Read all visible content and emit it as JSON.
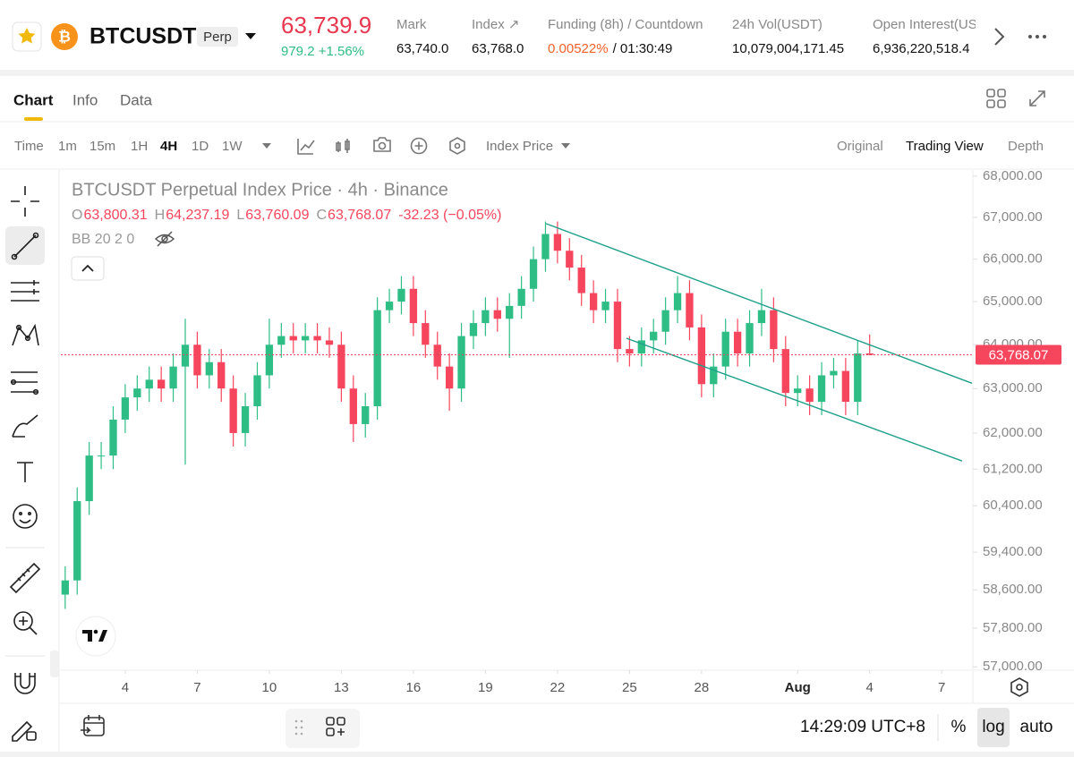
{
  "header": {
    "symbol": "BTCUSDT",
    "contract": "Perp",
    "last_price": "63,739.9",
    "change": "979.2 +1.56%",
    "stats": [
      {
        "label": "Mark",
        "value": "63,740.0"
      },
      {
        "label": "Index ↗",
        "value": "63,768.0"
      },
      {
        "label": "Funding (8h) / Countdown",
        "value": "0.00522%",
        "value2": "/ 01:30:49"
      },
      {
        "label": "24h Vol(USDT)",
        "value": "10,079,004,171.45"
      },
      {
        "label": "Open Interest(US",
        "value": "6,936,220,518.4"
      }
    ]
  },
  "tabs": [
    "Chart",
    "Info",
    "Data"
  ],
  "toolbar": {
    "intervals": [
      "Time",
      "1m",
      "15m",
      "1H",
      "4H",
      "1D",
      "1W"
    ],
    "active_interval": 4,
    "price_source": "Index Price",
    "views": [
      "Original",
      "Trading View",
      "Depth"
    ],
    "active_view": 1
  },
  "chart_data": {
    "type": "candlestick",
    "title": "BTCUSDT Perpetual Index Price · 4h · Binance",
    "ohlc_legend": [
      {
        "label": "O",
        "value": "63,800.31"
      },
      {
        "label": "H",
        "value": "64,237.19"
      },
      {
        "label": "L",
        "value": "63,760.09"
      },
      {
        "label": "C",
        "value": "63,768.07"
      }
    ],
    "change_label": "-32.23 (−0.05%)",
    "indicator": "BB 20 2 0",
    "up_color": "#2ebd85",
    "down_color": "#f6465d",
    "trend_color": "#1fa08a",
    "log_scale": true,
    "xlim": [
      1.32,
      39.26
    ],
    "xticks": [
      4,
      7,
      10,
      13,
      16,
      19,
      22,
      25,
      28,
      {
        "value": 32,
        "label": "Aug"
      },
      {
        "value": 35,
        "label": "4"
      },
      {
        "value": 38,
        "label": "7"
      }
    ],
    "ylim": [
      56950,
      68150
    ],
    "yticks": [
      {
        "value": 68000,
        "label": "68,000.00"
      },
      {
        "value": 67000,
        "label": "67,000.00"
      },
      {
        "value": 66000,
        "label": "66,000.00"
      },
      {
        "value": 65000,
        "label": "65,000.00"
      },
      {
        "value": 64000,
        "label": "64,000.00"
      },
      {
        "value": 63000,
        "label": "63,000.00"
      },
      {
        "value": 62000,
        "label": "62,000.00"
      },
      {
        "value": 61200,
        "label": "61,200.00"
      },
      {
        "value": 60400,
        "label": "60,400.00"
      },
      {
        "value": 59400,
        "label": "59,400.00"
      },
      {
        "value": 58600,
        "label": "58,600.00"
      },
      {
        "value": 57800,
        "label": "57,800.00"
      },
      {
        "value": 57000,
        "label": "57,000.00"
      }
    ],
    "candles": [
      {
        "x": 1.5,
        "open": 58500,
        "high": 59100,
        "low": 58200,
        "close": 58800
      },
      {
        "x": 2,
        "open": 58800,
        "high": 60800,
        "low": 58500,
        "close": 60500
      },
      {
        "x": 2.5,
        "open": 60500,
        "high": 61800,
        "low": 60200,
        "close": 61500
      },
      {
        "x": 3,
        "open": 61500,
        "high": 61800,
        "low": 61200,
        "close": 61500
      },
      {
        "x": 3.5,
        "open": 61500,
        "high": 62600,
        "low": 61200,
        "close": 62300
      },
      {
        "x": 4,
        "open": 62300,
        "high": 63100,
        "low": 62000,
        "close": 62800
      },
      {
        "x": 4.5,
        "open": 62800,
        "high": 63300,
        "low": 62500,
        "close": 63000
      },
      {
        "x": 5,
        "open": 63000,
        "high": 63500,
        "low": 62700,
        "close": 63200
      },
      {
        "x": 5.5,
        "open": 63200,
        "high": 63500,
        "low": 62700,
        "close": 63000
      },
      {
        "x": 6,
        "open": 63000,
        "high": 63800,
        "low": 62700,
        "close": 63500
      },
      {
        "x": 6.5,
        "open": 63500,
        "high": 64600,
        "low": 61300,
        "close": 64000
      },
      {
        "x": 7,
        "open": 64000,
        "high": 64300,
        "low": 63000,
        "close": 63300
      },
      {
        "x": 7.5,
        "open": 63300,
        "high": 63900,
        "low": 63000,
        "close": 63600
      },
      {
        "x": 8,
        "open": 63600,
        "high": 63900,
        "low": 62700,
        "close": 63000
      },
      {
        "x": 8.5,
        "open": 63000,
        "high": 63300,
        "low": 61700,
        "close": 62000
      },
      {
        "x": 9,
        "open": 62000,
        "high": 62900,
        "low": 61700,
        "close": 62600
      },
      {
        "x": 9.5,
        "open": 62600,
        "high": 63600,
        "low": 62300,
        "close": 63300
      },
      {
        "x": 10,
        "open": 63300,
        "high": 64600,
        "low": 63000,
        "close": 64000
      },
      {
        "x": 10.5,
        "open": 64000,
        "high": 64500,
        "low": 63700,
        "close": 64200
      },
      {
        "x": 11,
        "open": 64200,
        "high": 64500,
        "low": 63800,
        "close": 64100
      },
      {
        "x": 11.5,
        "open": 64100,
        "high": 64500,
        "low": 63800,
        "close": 64200
      },
      {
        "x": 12,
        "open": 64200,
        "high": 64500,
        "low": 63800,
        "close": 64100
      },
      {
        "x": 12.5,
        "open": 64100,
        "high": 64400,
        "low": 63700,
        "close": 64000
      },
      {
        "x": 13,
        "open": 64000,
        "high": 64300,
        "low": 62700,
        "close": 63000
      },
      {
        "x": 13.5,
        "open": 63000,
        "high": 63300,
        "low": 61800,
        "close": 62200
      },
      {
        "x": 14,
        "open": 62200,
        "high": 62900,
        "low": 61900,
        "close": 62600
      },
      {
        "x": 14.5,
        "open": 62600,
        "high": 65100,
        "low": 62300,
        "close": 64800
      },
      {
        "x": 15,
        "open": 64800,
        "high": 65300,
        "low": 64500,
        "close": 65000
      },
      {
        "x": 15.5,
        "open": 65000,
        "high": 65600,
        "low": 64700,
        "close": 65300
      },
      {
        "x": 16,
        "open": 65300,
        "high": 65600,
        "low": 64200,
        "close": 64500
      },
      {
        "x": 16.5,
        "open": 64500,
        "high": 64800,
        "low": 63700,
        "close": 64000
      },
      {
        "x": 17,
        "open": 64000,
        "high": 64300,
        "low": 63200,
        "close": 63500
      },
      {
        "x": 17.5,
        "open": 63500,
        "high": 63800,
        "low": 62500,
        "close": 63000
      },
      {
        "x": 18,
        "open": 63000,
        "high": 64500,
        "low": 62700,
        "close": 64200
      },
      {
        "x": 18.5,
        "open": 64200,
        "high": 64800,
        "low": 63900,
        "close": 64500
      },
      {
        "x": 19,
        "open": 64500,
        "high": 65100,
        "low": 64200,
        "close": 64800
      },
      {
        "x": 19.5,
        "open": 64800,
        "high": 65100,
        "low": 64300,
        "close": 64600
      },
      {
        "x": 20,
        "open": 64600,
        "high": 65200,
        "low": 63700,
        "close": 64900
      },
      {
        "x": 20.5,
        "open": 64900,
        "high": 65600,
        "low": 64600,
        "close": 65300
      },
      {
        "x": 21,
        "open": 65300,
        "high": 66300,
        "low": 65000,
        "close": 66000
      },
      {
        "x": 21.5,
        "open": 66000,
        "high": 66900,
        "low": 65700,
        "close": 66600
      },
      {
        "x": 22,
        "open": 66600,
        "high": 66900,
        "low": 65900,
        "close": 66200
      },
      {
        "x": 22.5,
        "open": 66200,
        "high": 66500,
        "low": 65500,
        "close": 65800
      },
      {
        "x": 23,
        "open": 65800,
        "high": 66100,
        "low": 64900,
        "close": 65200
      },
      {
        "x": 23.5,
        "open": 65200,
        "high": 65500,
        "low": 64500,
        "close": 64800
      },
      {
        "x": 24,
        "open": 64800,
        "high": 65300,
        "low": 64500,
        "close": 65000
      },
      {
        "x": 24.5,
        "open": 65000,
        "high": 65300,
        "low": 63600,
        "close": 63900
      },
      {
        "x": 25,
        "open": 63900,
        "high": 64200,
        "low": 63500,
        "close": 63800
      },
      {
        "x": 25.5,
        "open": 63800,
        "high": 64400,
        "low": 63500,
        "close": 64100
      },
      {
        "x": 26,
        "open": 64100,
        "high": 64600,
        "low": 63800,
        "close": 64300
      },
      {
        "x": 26.5,
        "open": 64300,
        "high": 65100,
        "low": 64000,
        "close": 64800
      },
      {
        "x": 27,
        "open": 64800,
        "high": 65600,
        "low": 64500,
        "close": 65200
      },
      {
        "x": 27.5,
        "open": 65200,
        "high": 65500,
        "low": 64100,
        "close": 64400
      },
      {
        "x": 28,
        "open": 64400,
        "high": 64700,
        "low": 62800,
        "close": 63100
      },
      {
        "x": 28.5,
        "open": 63100,
        "high": 63800,
        "low": 62800,
        "close": 63500
      },
      {
        "x": 29,
        "open": 63500,
        "high": 64600,
        "low": 63200,
        "close": 64300
      },
      {
        "x": 29.5,
        "open": 64300,
        "high": 64600,
        "low": 63500,
        "close": 63800
      },
      {
        "x": 30,
        "open": 63800,
        "high": 64800,
        "low": 63500,
        "close": 64500
      },
      {
        "x": 30.5,
        "open": 64500,
        "high": 65300,
        "low": 64200,
        "close": 64800
      },
      {
        "x": 31,
        "open": 64800,
        "high": 65100,
        "low": 63600,
        "close": 63900
      },
      {
        "x": 31.5,
        "open": 63900,
        "high": 64200,
        "low": 62600,
        "close": 62900
      },
      {
        "x": 32,
        "open": 62900,
        "high": 63300,
        "low": 62600,
        "close": 63000
      },
      {
        "x": 32.5,
        "open": 63000,
        "high": 63300,
        "low": 62400,
        "close": 62700
      },
      {
        "x": 33,
        "open": 62700,
        "high": 63600,
        "low": 62400,
        "close": 63300
      },
      {
        "x": 33.5,
        "open": 63300,
        "high": 63700,
        "low": 63000,
        "close": 63400
      },
      {
        "x": 34,
        "open": 63400,
        "high": 63700,
        "low": 62400,
        "close": 62700
      },
      {
        "x": 34.5,
        "open": 62700,
        "high": 64100,
        "low": 62400,
        "close": 63800
      },
      {
        "x": 35,
        "open": 63800.31,
        "high": 64237.19,
        "low": 63760.09,
        "close": 63768.07
      }
    ],
    "trendlines": [
      {
        "x": [
          21.52,
          39.26
        ],
        "y": [
          66850,
          63120
        ]
      },
      {
        "x": [
          24.87,
          38.85
        ],
        "y": [
          64150,
          61380
        ]
      }
    ],
    "last_price_label": "63,768.07"
  },
  "footer": {
    "time": "14:29:09 UTC+8",
    "scale_buttons": [
      "%",
      "log",
      "auto"
    ]
  }
}
